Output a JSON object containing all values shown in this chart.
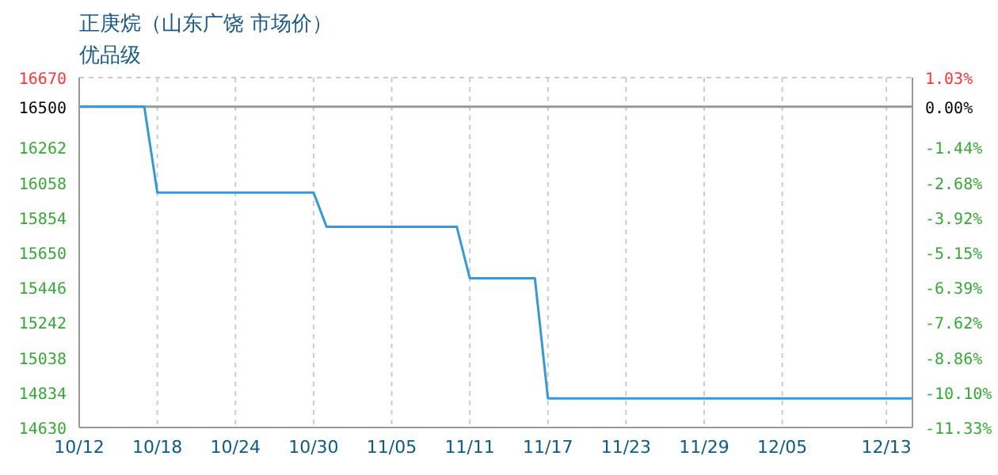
{
  "chart_data": {
    "type": "line",
    "title": "正庚烷（山东广饶 市场价）",
    "subtitle": "优品级",
    "x": [
      "--10-12",
      "--10-17",
      "--10-18",
      "--10-30",
      "--10-31",
      "--11-10",
      "--11-11",
      "--11-16",
      "--11-17",
      "--12-15"
    ],
    "series": [
      {
        "color": "#3399dd",
        "values": [
          16500,
          16500,
          16000,
          16000,
          15800,
          15800,
          15500,
          15500,
          14800,
          14800
        ]
      }
    ],
    "xlim": [
      "--10-12",
      "--12-15"
    ],
    "xticks": [
      {
        "value": "--10-12",
        "label": "10/12"
      },
      {
        "value": "--10-18",
        "label": "10/18"
      },
      {
        "value": "--10-24",
        "label": "10/24"
      },
      {
        "value": "--10-30",
        "label": "10/30"
      },
      {
        "value": "--11-05",
        "label": "11/05"
      },
      {
        "value": "--11-11",
        "label": "11/11"
      },
      {
        "value": "--11-17",
        "label": "11/17"
      },
      {
        "value": "--11-23",
        "label": "11/23"
      },
      {
        "value": "--11-29",
        "label": "11/29"
      },
      {
        "value": "--12-05",
        "label": "12/05"
      },
      {
        "value": "--12-13",
        "label": "12/13"
      }
    ],
    "ylim": [
      14630,
      16670
    ],
    "yticks": [
      14630,
      14834,
      15038,
      15242,
      15446,
      15650,
      15854,
      16058,
      16262,
      16500,
      16670
    ],
    "y2lim": [
      -11.33,
      1.03
    ],
    "y2ticks": [
      {
        "value": -11.33,
        "label": "-11.33%"
      },
      {
        "value": -10.1,
        "label": "-10.10%"
      },
      {
        "value": -8.86,
        "label": "-8.86%"
      },
      {
        "value": -7.62,
        "label": "-7.62%"
      },
      {
        "value": -6.39,
        "label": "-6.39%"
      },
      {
        "value": -5.15,
        "label": "-5.15%"
      },
      {
        "value": -3.92,
        "label": "-3.92%"
      },
      {
        "value": -2.68,
        "label": "-2.68%"
      },
      {
        "value": -1.44,
        "label": "-1.44%"
      },
      {
        "value": 0,
        "label": "0.00%"
      },
      {
        "value": 1.03,
        "label": "1.03%"
      }
    ],
    "ref_lines": [
      {
        "axis": "y",
        "value": 16500,
        "color": "#999999"
      }
    ],
    "grid": true,
    "marker": "none",
    "line_style": "solid",
    "legend": false
  }
}
